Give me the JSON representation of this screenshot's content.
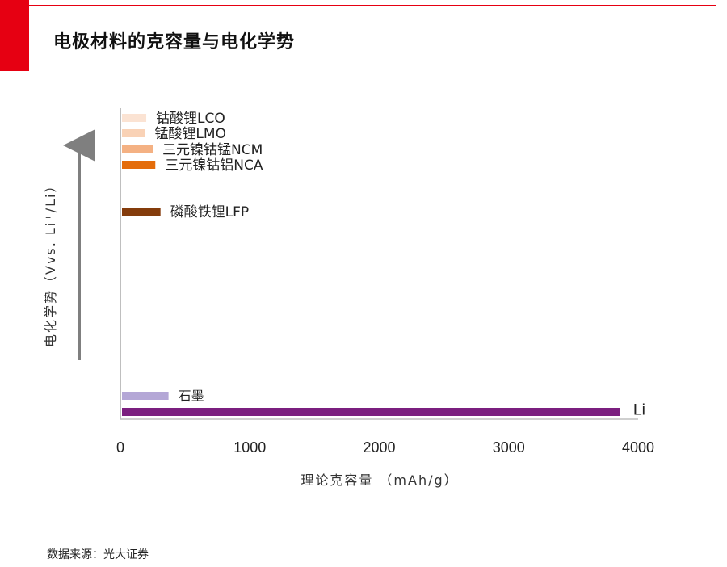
{
  "slide": {
    "title": "电极材料的克容量与电化学势",
    "source": "数据来源：光大证券"
  },
  "chart_data": {
    "type": "bar",
    "orientation": "horizontal",
    "title": "",
    "xlabel": "理论克容量 （mAh/g）",
    "ylabel": "电化学势（Vvs. Li⁺/Li）",
    "xlim": [
      0,
      4000
    ],
    "xticks": [
      "0",
      "1000",
      "2000",
      "3000",
      "4000"
    ],
    "grid": false,
    "legend": "none",
    "bars": [
      {
        "label": "钴酸锂LCO",
        "capacity": 200,
        "potential_rank": 1,
        "color": "#fbe3d3"
      },
      {
        "label": "锰酸锂LMO",
        "capacity": 190,
        "potential_rank": 2,
        "color": "#f9d2b6"
      },
      {
        "label": "三元镍钴锰NCM",
        "capacity": 250,
        "potential_rank": 3,
        "color": "#f4b183"
      },
      {
        "label": "三元镍钴铝NCA",
        "capacity": 270,
        "potential_rank": 4,
        "color": "#e46c0a"
      },
      {
        "label": "磷酸铁锂LFP",
        "capacity": 310,
        "potential_rank": 5,
        "color": "#843c0c"
      },
      {
        "label": "石墨",
        "capacity": 372,
        "potential_rank": 6,
        "color": "#b4a7d6"
      },
      {
        "label": "Li",
        "capacity": 3860,
        "potential_rank": 7,
        "color": "#7b1f7f"
      }
    ]
  }
}
